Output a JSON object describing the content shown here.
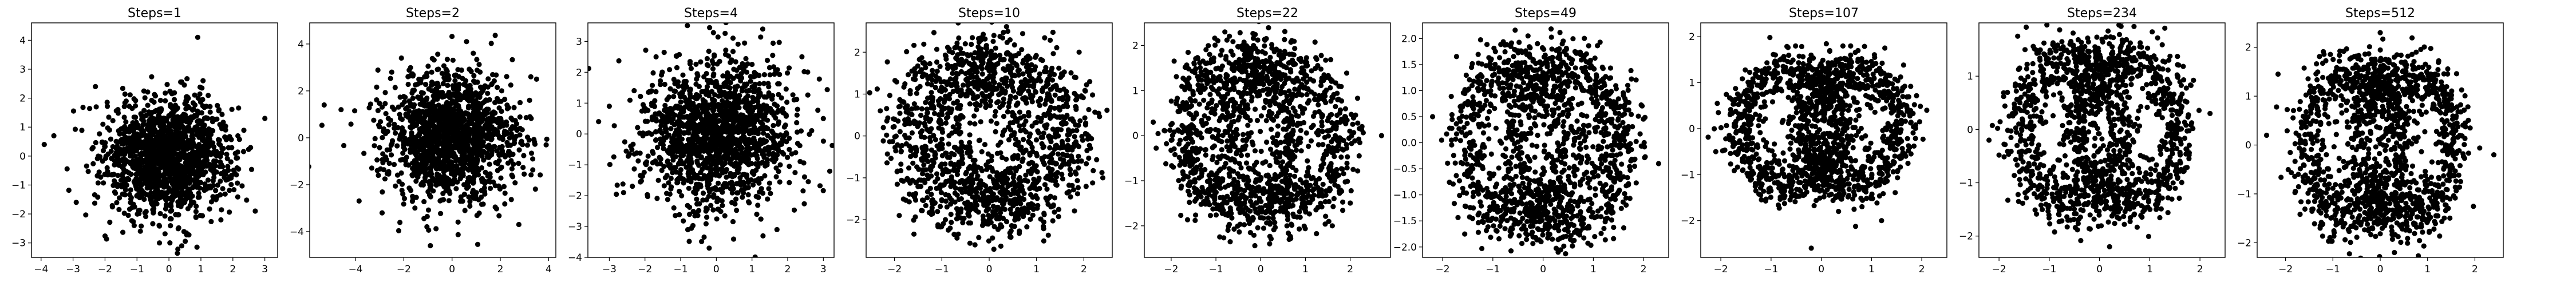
{
  "chart_data": [
    {
      "type": "scatter",
      "title": "Steps=1",
      "xlim": [
        -4.3,
        3.4
      ],
      "ylim": [
        -3.5,
        4.6
      ],
      "xticks": [
        -4,
        -3,
        -2,
        -1,
        0,
        1,
        2,
        3
      ],
      "yticks": [
        -3,
        -2,
        -1,
        0,
        1,
        2,
        3,
        4
      ],
      "pattern": {
        "kind": "gauss",
        "sx": 1.0,
        "sy": 1.0
      },
      "points": [
        [
          -3.9,
          0.4
        ],
        [
          -3.6,
          0.7
        ],
        [
          0.9,
          4.1
        ],
        [
          3.0,
          1.3
        ],
        [
          2.7,
          -1.9
        ],
        [
          -2.3,
          2.4
        ],
        [
          0.4,
          -3.1
        ],
        [
          -2.9,
          -1.6
        ]
      ]
    },
    {
      "type": "scatter",
      "title": "Steps=2",
      "xlim": [
        -5.9,
        4.3
      ],
      "ylim": [
        -5.1,
        4.9
      ],
      "xticks": [
        -4,
        -2,
        0,
        2,
        4
      ],
      "yticks": [
        -4,
        -2,
        0,
        2,
        4
      ],
      "pattern": {
        "kind": "gauss",
        "sx": 1.35,
        "sy": 1.35
      },
      "points": [
        [
          -5.3,
          1.4
        ],
        [
          -4.6,
          1.2
        ],
        [
          3.9,
          -0.3
        ],
        [
          3.5,
          2.5
        ],
        [
          -0.9,
          -4.6
        ],
        [
          -2.1,
          3.4
        ],
        [
          0.6,
          4.1
        ],
        [
          -2.9,
          -3.2
        ]
      ]
    },
    {
      "type": "scatter",
      "title": "Steps=4",
      "xlim": [
        -3.6,
        3.3
      ],
      "ylim": [
        -4.0,
        3.6
      ],
      "xticks": [
        -3,
        -2,
        -1,
        0,
        1,
        2,
        3
      ],
      "yticks": [
        -4,
        -3,
        -2,
        -1,
        0,
        1,
        2,
        3
      ],
      "pattern": {
        "kind": "gauss",
        "sx": 1.1,
        "sy": 1.2
      },
      "points": [
        [
          -3.3,
          0.4
        ],
        [
          -3.0,
          0.9
        ],
        [
          3.0,
          0.5
        ],
        [
          1.3,
          3.4
        ],
        [
          -0.2,
          -3.7
        ],
        [
          2.4,
          2.5
        ],
        [
          -2.6,
          -1.9
        ],
        [
          1.7,
          -3.1
        ]
      ]
    },
    {
      "type": "scatter",
      "title": "Steps=10",
      "xlim": [
        -2.6,
        2.6
      ],
      "ylim": [
        -2.9,
        2.7
      ],
      "xticks": [
        -2,
        -1,
        0,
        1,
        2
      ],
      "yticks": [
        -2,
        -1,
        0,
        1,
        2
      ],
      "pattern": {
        "kind": "rings",
        "ring": 1.3,
        "sep": 0.45,
        "ry": 1.7,
        "noise": 0.32
      },
      "points": [
        [
          -2.3,
          0.6
        ],
        [
          2.4,
          -1.0
        ],
        [
          -0.3,
          -2.6
        ],
        [
          0.1,
          2.4
        ],
        [
          -1.9,
          -1.9
        ],
        [
          1.9,
          2.0
        ]
      ]
    },
    {
      "type": "scatter",
      "title": "Steps=22",
      "xlim": [
        -2.6,
        2.9
      ],
      "ylim": [
        -2.7,
        2.5
      ],
      "xticks": [
        -2,
        -1,
        0,
        1,
        2
      ],
      "yticks": [
        -2,
        -1,
        0,
        1,
        2
      ],
      "pattern": {
        "kind": "rings",
        "ring": 1.2,
        "sep": 0.5,
        "ry": 1.65,
        "noise": 0.25
      },
      "points": [
        [
          2.7,
          0.0
        ],
        [
          -2.4,
          0.3
        ],
        [
          0.2,
          -2.4
        ],
        [
          -0.8,
          2.3
        ],
        [
          1.6,
          -2.0
        ]
      ]
    },
    {
      "type": "scatter",
      "title": "Steps=49",
      "xlim": [
        -2.4,
        2.5
      ],
      "ylim": [
        -2.2,
        2.3
      ],
      "xticks": [
        -2,
        -1,
        0,
        1,
        2
      ],
      "yticks": [
        -2.0,
        -1.5,
        -1.0,
        -0.5,
        0.0,
        0.5,
        1.0,
        1.5,
        2.0
      ],
      "pattern": {
        "kind": "rings",
        "ring": 1.05,
        "sep": 0.5,
        "ry": 1.5,
        "noise": 0.22
      },
      "points": [
        [
          -2.2,
          0.5
        ],
        [
          2.3,
          -0.4
        ],
        [
          0.3,
          -2.1
        ],
        [
          -0.3,
          2.05
        ]
      ]
    },
    {
      "type": "scatter",
      "title": "Steps=107",
      "xlim": [
        -2.4,
        2.5
      ],
      "ylim": [
        -2.8,
        2.3
      ],
      "xticks": [
        -2,
        -1,
        0,
        1,
        2
      ],
      "yticks": [
        -2,
        -1,
        0,
        1,
        2
      ],
      "pattern": {
        "kind": "rings",
        "ring": 1.0,
        "sep": 0.6,
        "ry": 1.25,
        "noise": 0.2
      },
      "points": [
        [
          -0.2,
          -2.6
        ],
        [
          2.1,
          0.4
        ],
        [
          -2.1,
          -0.5
        ],
        [
          1.2,
          -2.0
        ]
      ]
    },
    {
      "type": "scatter",
      "title": "Steps=234",
      "xlim": [
        -2.4,
        2.5
      ],
      "ylim": [
        -2.4,
        2.0
      ],
      "xticks": [
        -2,
        -1,
        0,
        1,
        2
      ],
      "yticks": [
        -2,
        -1,
        0,
        1
      ],
      "pattern": {
        "kind": "rings",
        "ring": 1.0,
        "sep": 0.55,
        "ry": 1.35,
        "noise": 0.2
      },
      "points": [
        [
          -2.2,
          -0.2
        ],
        [
          2.2,
          0.3
        ],
        [
          0.2,
          -2.2
        ],
        [
          1.3,
          1.9
        ]
      ]
    },
    {
      "type": "scatter",
      "title": "Steps=512",
      "xlim": [
        -2.6,
        2.6
      ],
      "ylim": [
        -2.3,
        2.5
      ],
      "xticks": [
        -2,
        -1,
        0,
        1,
        2
      ],
      "yticks": [
        -2,
        -1,
        0,
        1,
        2
      ],
      "pattern": {
        "kind": "rings",
        "ring": 1.0,
        "sep": 0.55,
        "ry": 1.5,
        "noise": 0.2
      },
      "points": [
        [
          -2.4,
          0.2
        ],
        [
          2.4,
          -0.2
        ],
        [
          0.3,
          -2.2
        ],
        [
          0.0,
          2.3
        ]
      ]
    }
  ]
}
